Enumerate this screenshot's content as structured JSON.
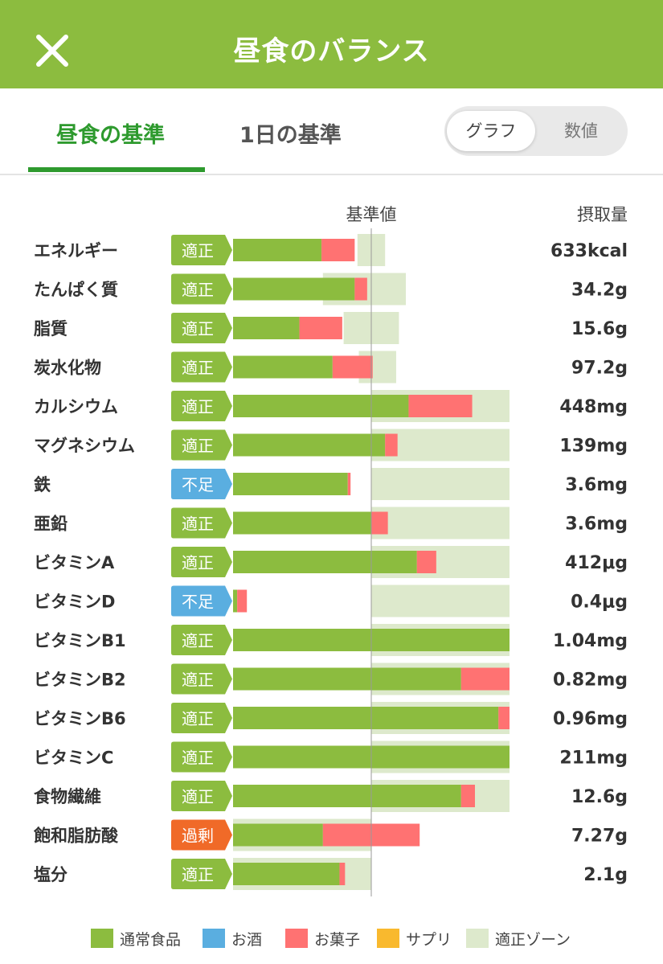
{
  "header": {
    "title": "昼食のバランス",
    "close_icon": "close-icon"
  },
  "tabs": {
    "lunch": "昼食の基準",
    "day": "1日の基準"
  },
  "view_toggle": {
    "graph": "グラフ",
    "value": "数値",
    "selected": "graph"
  },
  "chart_data": {
    "type": "bar",
    "orientation": "horizontal",
    "stacked": true,
    "reference_label": "基準値",
    "intake_header": "摂取量",
    "units": "percent of reference value (基準値 = 100)",
    "status_colors": {
      "適正": "#8cbc3f",
      "不足": "#5aaee0",
      "過剰": "#f06a28"
    },
    "series_colors": {
      "通常食品": "#8cbc3f",
      "お酒": "#5aaee0",
      "お菓子": "#ff7272",
      "サプリ": "#f9b92e",
      "適正ゾーン": "#dde9cc"
    },
    "rows": [
      {
        "name": "エネルギー",
        "status": "適正",
        "value": "633kcal",
        "food": 64,
        "sweets": 24,
        "zone": [
          90,
          110
        ]
      },
      {
        "name": "たんぱく質",
        "status": "適正",
        "value": "34.2g",
        "food": 88,
        "sweets": 9,
        "zone": [
          65,
          125
        ]
      },
      {
        "name": "脂質",
        "status": "適正",
        "value": "15.6g",
        "food": 48,
        "sweets": 31,
        "zone": [
          80,
          120
        ]
      },
      {
        "name": "炭水化物",
        "status": "適正",
        "value": "97.2g",
        "food": 72,
        "sweets": 29,
        "zone": [
          91,
          118
        ]
      },
      {
        "name": "カルシウム",
        "status": "適正",
        "value": "448mg",
        "food": 127,
        "sweets": 46,
        "zone": [
          100,
          200
        ]
      },
      {
        "name": "マグネシウム",
        "status": "適正",
        "value": "139mg",
        "food": 110,
        "sweets": 9,
        "zone": [
          100,
          200
        ]
      },
      {
        "name": "鉄",
        "status": "不足",
        "value": "3.6mg",
        "food": 83,
        "sweets": 2,
        "zone": [
          100,
          200
        ]
      },
      {
        "name": "亜鉛",
        "status": "適正",
        "value": "3.6mg",
        "food": 100,
        "sweets": 12,
        "zone": [
          100,
          200
        ]
      },
      {
        "name": "ビタミンA",
        "status": "適正",
        "value": "412μg",
        "food": 133,
        "sweets": 14,
        "zone": [
          100,
          200
        ]
      },
      {
        "name": "ビタミンD",
        "status": "不足",
        "value": "0.4μg",
        "food": 3,
        "sweets": 7,
        "zone": [
          100,
          200
        ]
      },
      {
        "name": "ビタミンB1",
        "status": "適正",
        "value": "1.04mg",
        "food": 200,
        "sweets": 0,
        "zone": [
          100,
          200
        ]
      },
      {
        "name": "ビタミンB2",
        "status": "適正",
        "value": "0.82mg",
        "food": 165,
        "sweets": 35,
        "zone": [
          100,
          200
        ]
      },
      {
        "name": "ビタミンB6",
        "status": "適正",
        "value": "0.96mg",
        "food": 192,
        "sweets": 8,
        "zone": [
          100,
          200
        ]
      },
      {
        "name": "ビタミンC",
        "status": "適正",
        "value": "211mg",
        "food": 200,
        "sweets": 0,
        "zone": [
          100,
          200
        ]
      },
      {
        "name": "食物繊維",
        "status": "適正",
        "value": "12.6g",
        "food": 165,
        "sweets": 10,
        "zone": [
          100,
          200
        ]
      },
      {
        "name": "飽和脂肪酸",
        "status": "過剰",
        "value": "7.27g",
        "food": 65,
        "sweets": 70,
        "zone": [
          0,
          100
        ]
      },
      {
        "name": "塩分",
        "status": "適正",
        "value": "2.1g",
        "food": 77,
        "sweets": 4,
        "zone": [
          0,
          100
        ]
      }
    ]
  },
  "legend": [
    {
      "label": "通常食品",
      "color": "#8cbc3f"
    },
    {
      "label": "お酒",
      "color": "#5aaee0"
    },
    {
      "label": "お菓子",
      "color": "#ff7272"
    },
    {
      "label": "サプリ",
      "color": "#f9b92e"
    },
    {
      "label": "適正ゾーン",
      "color": "#dde9cc"
    }
  ]
}
